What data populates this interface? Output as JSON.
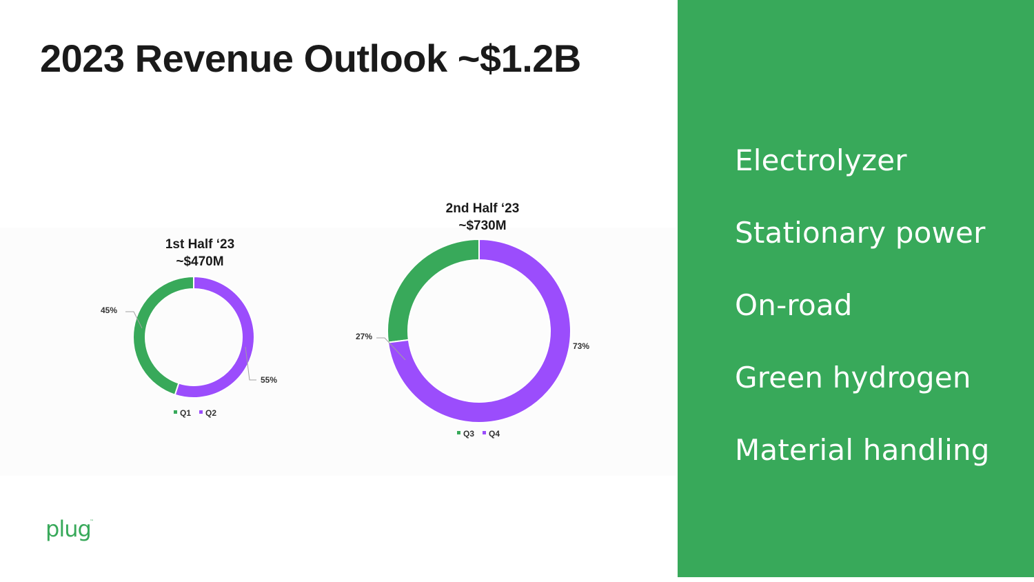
{
  "title": "2023 Revenue Outlook ~$1.2B",
  "colors": {
    "green": "#38a95a",
    "purple": "#9b4dfc",
    "text": "#1a1a1a",
    "leader": "#a0a0a0"
  },
  "chart_data": [
    {
      "type": "pie",
      "style": "donut",
      "title": "1st Half ‘23",
      "subtitle": "~$470M",
      "categories": [
        "Q1",
        "Q2"
      ],
      "values": [
        45,
        55
      ],
      "value_labels": [
        "45%",
        "55%"
      ],
      "colors": [
        "#38a95a",
        "#9b4dfc"
      ],
      "legend": "bottom"
    },
    {
      "type": "pie",
      "style": "donut",
      "title": "2nd Half ‘23",
      "subtitle": "~$730M",
      "categories": [
        "Q3",
        "Q4"
      ],
      "values": [
        27,
        73
      ],
      "value_labels": [
        "27%",
        "73%"
      ],
      "colors": [
        "#38a95a",
        "#9b4dfc"
      ],
      "legend": "bottom"
    }
  ],
  "side_panel": {
    "items": [
      "Electrolyzer",
      "Stationary power",
      "On-road",
      "Green hydrogen",
      "Material handling"
    ]
  },
  "logo": {
    "text": "plug",
    "trademark": "™"
  }
}
